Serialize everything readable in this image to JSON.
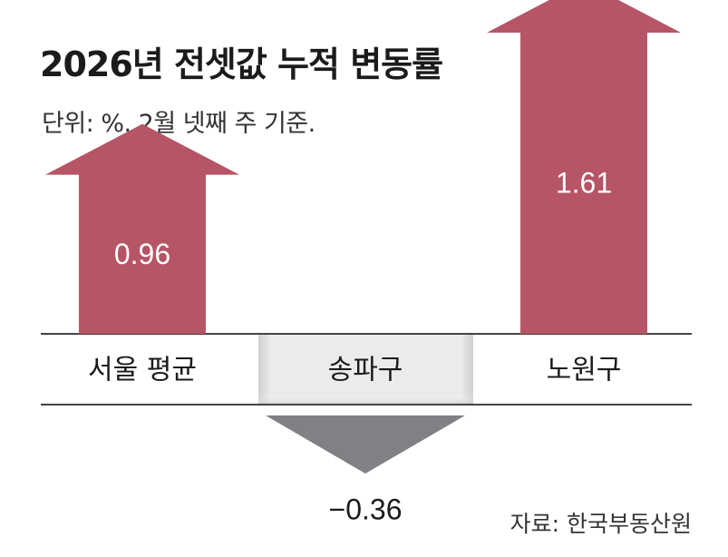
{
  "chart_data": {
    "type": "bar",
    "title": "2026년 전셋값 누적 변동률",
    "subtitle": "단위: %. 2월 넷째 주 기준.",
    "categories": [
      "서울 평균",
      "송파구",
      "노원구"
    ],
    "values": [
      0.96,
      -0.36,
      1.61
    ],
    "value_labels": [
      "0.96",
      "−0.36",
      "1.61"
    ],
    "source": "자료: 한국부동산원",
    "colors": {
      "positive": "#b55566",
      "negative": "#808184"
    }
  }
}
